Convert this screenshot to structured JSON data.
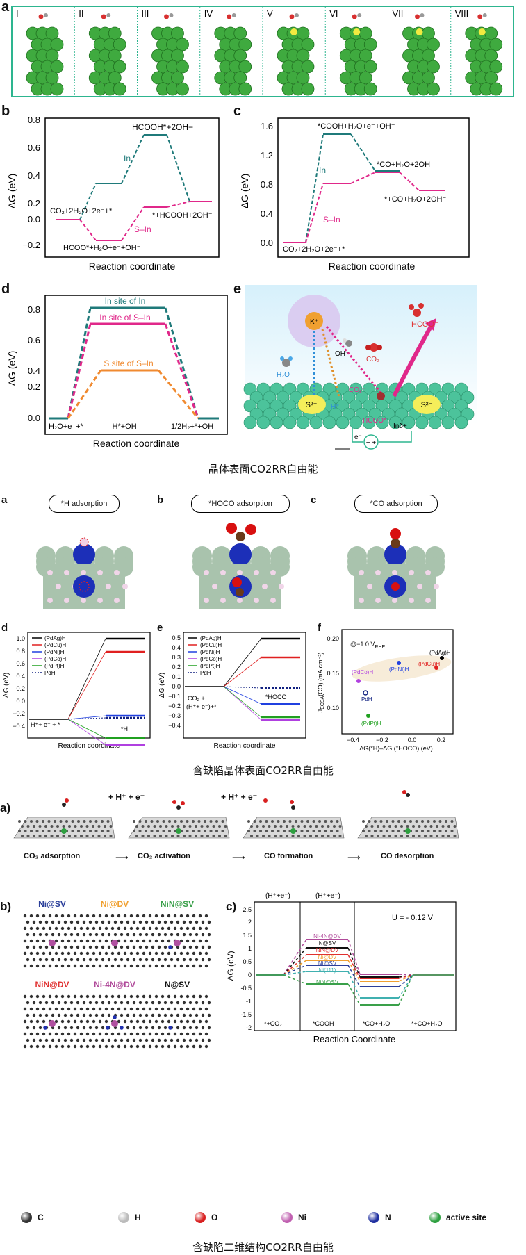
{
  "fig1": {
    "a": {
      "label": "a",
      "panels": [
        "I",
        "II",
        "III",
        "IV",
        "V",
        "VI",
        "VII",
        "VIII"
      ]
    },
    "b": {
      "label": "b",
      "ylabel": "ΔG (eV)",
      "xlabel": "Reaction coordinate",
      "yticks": [
        "0.8",
        "0.6",
        "0.4",
        "0.2",
        "0.0",
        "−0.2"
      ],
      "ann": {
        "top": "HCOOH*+2OH−",
        "in": "In",
        "sin": "S–In",
        "start": "CO₂+2H₂O+2e⁻+*",
        "mid": "HCOO*+H₂O+e⁻+OH⁻",
        "end": "*+HCOOH+2OH⁻"
      }
    },
    "c": {
      "label": "c",
      "ylabel": "ΔG (eV)",
      "xlabel": "Reaction coordinate",
      "yticks": [
        "1.6",
        "1.2",
        "0.8",
        "0.4",
        "0.0"
      ],
      "ann": {
        "top": "*COOH+H₂O+e⁻+OH⁻",
        "in": "In",
        "sin": "S–In",
        "start": "CO₂+2H₂O+2e⁻+*",
        "s3": "*CO+H₂O+2OH⁻",
        "end": "*+CO+H₂O+2OH⁻"
      }
    },
    "d": {
      "label": "d",
      "ylabel": "ΔG (eV)",
      "xlabel": "Reaction coordinate",
      "yticks": [
        "0.8",
        "0.6",
        "0.4",
        "0.2",
        "0.0"
      ],
      "ann": {
        "l1": "In site of In",
        "l2": "In site of S–In",
        "l3": "S site of S–In",
        "start": "H₂O+e⁻+*",
        "mid": "H*+OH⁻",
        "end": "1/2H₂+*+OH⁻"
      }
    },
    "e": {
      "label": "e",
      "species": {
        "k": "K⁺",
        "hcoo_top": "HCOO⁻",
        "oh": "OH⁻",
        "co2": "CO₂",
        "h2o": "H₂O",
        "co2m": "CO₂⁻",
        "hplus": "H⁺",
        "s1": "S²⁻",
        "s2": "S²⁻",
        "hcoo_ads": "HCOO*",
        "in": "Inδ+",
        "e": "e⁻"
      }
    },
    "caption": "晶体表面CO2RR自由能"
  },
  "fig2": {
    "a_label": "a",
    "a_title": "*H adsorption",
    "b_label": "b",
    "b_title": "*HOCO adsorption",
    "c_label": "c",
    "c_title": "*CO adsorption",
    "d": {
      "label": "d",
      "ylabel": "ΔG (eV)",
      "xlabel": "Reaction coordinate",
      "yticks": [
        "1.0",
        "0.8",
        "0.6",
        "0.4",
        "0.2",
        "0.0",
        "−0.2",
        "−0.4"
      ],
      "start": "H⁺+ e⁻ + *",
      "end": "*H",
      "legend": [
        "(PdAg)H",
        "(PdCu)H",
        "(PdNi)H",
        "(PdCo)H",
        "(PdPt)H",
        "PdH"
      ]
    },
    "e": {
      "label": "e",
      "ylabel": "ΔG (eV)",
      "xlabel": "Reaction coordinate",
      "yticks": [
        "0.5",
        "0.4",
        "0.3",
        "0.2",
        "0.1",
        "0.0",
        "−0.1",
        "−0.2",
        "−0.3",
        "−0.4"
      ],
      "start": "CO₂ +",
      "start2": "(H⁺+ e⁻)+*",
      "end": "*HOCO",
      "legend": [
        "(PdAg)H",
        "(PdCu)H",
        "(PdNi)H",
        "(PdCo)H",
        "(PdPt)H",
        "PdH"
      ]
    },
    "f": {
      "label": "f",
      "ylabel": "Jₑₛₑₐ(CO) (mA cm⁻²)",
      "ylabel_main": "J",
      "ylabel_sub": "ECSA",
      "ylabel_rest": "(CO) (mA cm⁻²)",
      "xlabel": "ΔG(*H)–ΔG (*HOCO) (eV)",
      "potential": "@−1.0 V",
      "potential_sub": "RHE",
      "xticks": [
        "−0.4",
        "−0.2",
        "0.0",
        "0.2"
      ],
      "yticks": [
        "0.20",
        "0.15",
        "0.10"
      ],
      "points": [
        "(PdAg)H",
        "(PdCu)H",
        "(PdNi)H",
        "(PdCo)H",
        "PdH",
        "(PdPt)H"
      ]
    },
    "caption": "含缺陷晶体表面CO2RR自由能"
  },
  "fig3": {
    "a": {
      "label": "a)",
      "steps": [
        "CO₂ adsorption",
        "CO₂ activation",
        "CO formation",
        "CO desorption"
      ],
      "hplus1": "+ H⁺ + e⁻",
      "hplus2": "+ H⁺ + e⁻"
    },
    "b": {
      "label": "b)",
      "structs": [
        "Ni@SV",
        "Ni@DV",
        "NiN@SV",
        "NiN@DV",
        "Ni-4N@DV",
        "N@SV"
      ],
      "struct_colors": [
        "#2b3f9a",
        "#f0a030",
        "#3aa04a",
        "#e03030",
        "#b04a9a",
        "#111111"
      ]
    },
    "c": {
      "label": "c)",
      "ylabel": "ΔG (eV)",
      "xlabel": "Reaction Coordinate",
      "u": "U = - 0.12 V",
      "top1": "(H⁺+e⁻)",
      "top2": "(H⁺+e⁻)",
      "yticks": [
        "2.5",
        "2",
        "1.5",
        "1",
        "0.5",
        "0",
        "-0.5",
        "-1",
        "-1.5",
        "-2"
      ],
      "states": [
        "*+CO₂",
        "*COOH",
        "*CO+H₂O",
        "*+CO+H₂O"
      ],
      "series": [
        "Ni-4N@DV",
        "N@SV",
        "NiN@DV",
        "Ni@DV",
        "Ni@SV",
        "Ni(111)",
        "NiN@SV"
      ]
    },
    "legend": [
      "C",
      "H",
      "O",
      "Ni",
      "N",
      "active site"
    ],
    "caption": "含缺陷二维结构CO2RR自由能"
  }
}
